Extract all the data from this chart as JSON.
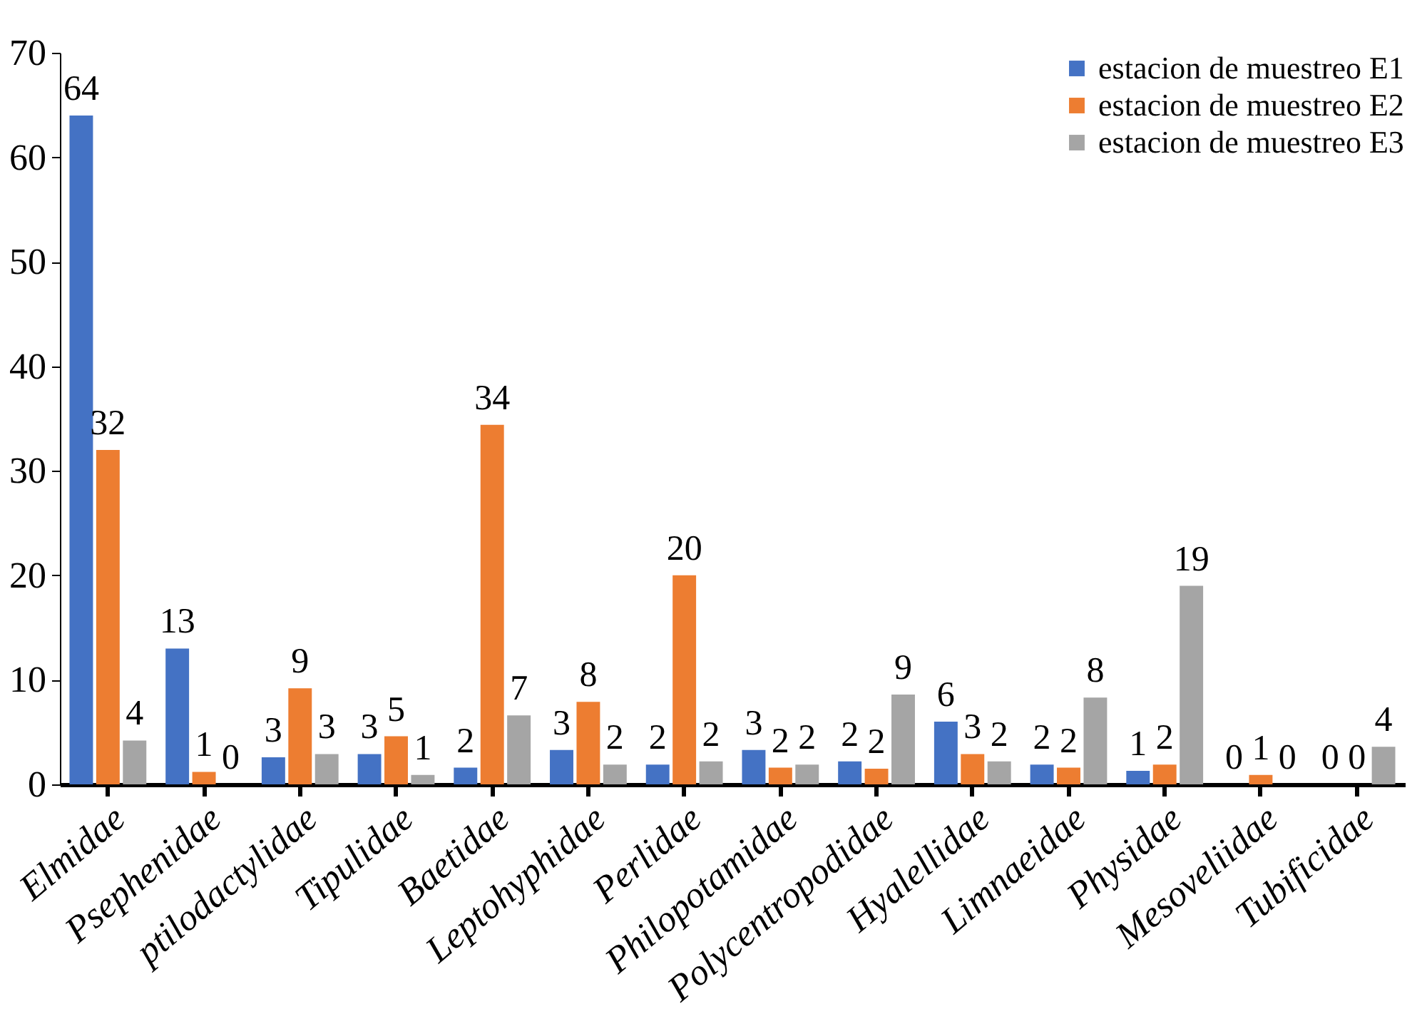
{
  "chart_data": {
    "type": "bar",
    "categories": [
      "Elmidae",
      "Psephenidae",
      "ptilodactylidae",
      "Tipulidae",
      "Baetidae",
      "Leptohyphidae",
      "Perlidae",
      "Philopotamidae",
      "Polycentropodidae",
      "Hyalellidae",
      "Limnaeidae",
      "Physidae",
      "Mesoveliidae",
      "Tubificidae"
    ],
    "series": [
      {
        "name": "estacion de muestreo E1",
        "color": "#4472c4",
        "values": [
          64,
          13,
          2.6,
          2.9,
          1.6,
          3.3,
          1.9,
          3.3,
          2.2,
          6,
          1.9,
          1.3,
          0,
          0
        ],
        "value_labels": [
          "64",
          "13",
          "3",
          "3",
          "2",
          "3",
          "2",
          "3",
          "2",
          "6",
          "2",
          "1",
          "0",
          "0"
        ]
      },
      {
        "name": "estacion de muestreo E2",
        "color": "#ed7d31",
        "values": [
          32,
          1.2,
          9.2,
          4.6,
          34.4,
          7.9,
          20,
          1.6,
          1.5,
          2.9,
          1.6,
          1.9,
          0.9,
          0
        ],
        "value_labels": [
          "32",
          "1",
          "9",
          "5",
          "34",
          "8",
          "20",
          "2",
          "2",
          "3",
          "2",
          "2",
          "1",
          "0"
        ]
      },
      {
        "name": "estacion de muestreo E3",
        "color": "#a5a5a5",
        "values": [
          4.2,
          0,
          2.9,
          0.9,
          6.6,
          1.9,
          2.2,
          1.9,
          8.6,
          2.2,
          8.3,
          19,
          0,
          3.6
        ],
        "value_labels": [
          "4",
          "0",
          "3",
          "1",
          "7",
          "2",
          "2",
          "2",
          "9",
          "2",
          "8",
          "19",
          "0",
          "4"
        ]
      }
    ],
    "ylim": [
      0,
      70
    ],
    "yticks": [
      0,
      10,
      20,
      30,
      40,
      50,
      60,
      70
    ],
    "grid": false,
    "legend": "top right"
  }
}
